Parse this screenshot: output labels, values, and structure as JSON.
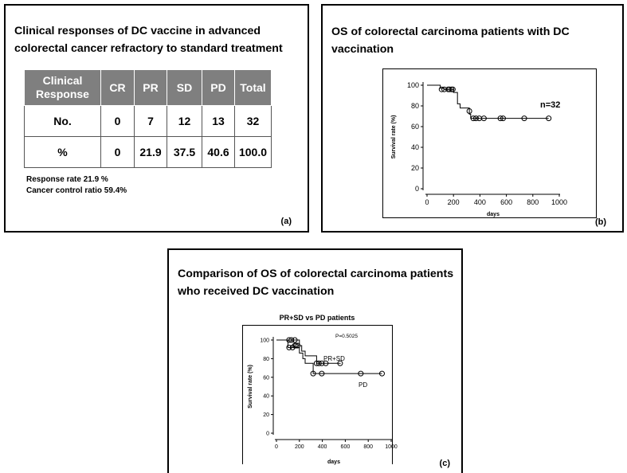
{
  "panel_a": {
    "title": "Clinical responses of DC vaccine in advanced colorectal cancer refractory to standard treatment",
    "label": "(a)",
    "table": {
      "headers": [
        "Clinical Response",
        "CR",
        "PR",
        "SD",
        "PD",
        "Total"
      ],
      "rows": [
        [
          "No.",
          "0",
          "7",
          "12",
          "13",
          "32"
        ],
        [
          "%",
          "0",
          "21.9",
          "37.5",
          "40.6",
          "100.0"
        ]
      ]
    },
    "notes": [
      "Response rate  21.9 %",
      "Cancer control ratio 59.4%"
    ]
  },
  "panel_b": {
    "title": "OS of colorectal carcinoma patients with DC vaccination",
    "label": "(b)"
  },
  "panel_c": {
    "title": "Comparison  of OS of colorectal carcinoma patients who received DC vaccination",
    "label": "(c)"
  },
  "chart_data": [
    {
      "type": "line",
      "subtype": "kaplan-meier",
      "xlabel": "days",
      "ylabel": "Survival rate (%)",
      "xlim": [
        0,
        1000
      ],
      "ylim": [
        0,
        100
      ],
      "xticks": [
        0,
        200,
        400,
        600,
        800,
        1000
      ],
      "yticks": [
        0,
        20,
        40,
        60,
        80,
        100
      ],
      "annotation": "n=32",
      "series": [
        {
          "steps": [
            [
              0,
              100
            ],
            [
              100,
              100
            ],
            [
              100,
              97
            ],
            [
              130,
              97
            ],
            [
              130,
              96
            ],
            [
              200,
              96
            ],
            [
              200,
              93
            ],
            [
              230,
              93
            ],
            [
              230,
              82
            ],
            [
              250,
              82
            ],
            [
              250,
              78
            ],
            [
              320,
              78
            ],
            [
              320,
              72
            ],
            [
              330,
              72
            ],
            [
              330,
              68
            ],
            [
              920,
              68
            ]
          ],
          "censored": [
            [
              110,
              96
            ],
            [
              130,
              96
            ],
            [
              160,
              96
            ],
            [
              170,
              96
            ],
            [
              185,
              96
            ],
            [
              195,
              96
            ],
            [
              320,
              75
            ],
            [
              350,
              68
            ],
            [
              370,
              68
            ],
            [
              395,
              68
            ],
            [
              430,
              68
            ],
            [
              555,
              68
            ],
            [
              575,
              68
            ],
            [
              735,
              68
            ],
            [
              920,
              68
            ]
          ]
        }
      ]
    },
    {
      "type": "line",
      "subtype": "kaplan-meier",
      "title": "PR+SD vs PD patients",
      "xlabel": "days",
      "ylabel": "Survival rate (%)",
      "xlim": [
        0,
        1000
      ],
      "ylim": [
        0,
        100
      ],
      "xticks": [
        0,
        200,
        400,
        600,
        800,
        1000
      ],
      "yticks": [
        0,
        20,
        40,
        60,
        80,
        100
      ],
      "annotation": "P=0.5025",
      "series": [
        {
          "name": "PR+SD",
          "steps": [
            [
              0,
              100
            ],
            [
              200,
              100
            ],
            [
              200,
              94
            ],
            [
              220,
              94
            ],
            [
              220,
              88
            ],
            [
              250,
              88
            ],
            [
              250,
              83
            ],
            [
              350,
              83
            ],
            [
              350,
              75
            ],
            [
              560,
              75
            ]
          ],
          "censored": [
            [
              110,
              100
            ],
            [
              130,
              100
            ],
            [
              160,
              94
            ],
            [
              170,
              94
            ],
            [
              185,
              94
            ],
            [
              350,
              75
            ],
            [
              370,
              75
            ],
            [
              395,
              75
            ],
            [
              430,
              75
            ],
            [
              555,
              75
            ]
          ]
        },
        {
          "name": "PD",
          "steps": [
            [
              0,
              100
            ],
            [
              100,
              100
            ],
            [
              100,
              92
            ],
            [
              200,
              92
            ],
            [
              200,
              86
            ],
            [
              230,
              86
            ],
            [
              230,
              80
            ],
            [
              250,
              80
            ],
            [
              250,
              75
            ],
            [
              320,
              75
            ],
            [
              320,
              64
            ],
            [
              920,
              64
            ]
          ],
          "censored": [
            [
              110,
              92
            ],
            [
              140,
              92
            ],
            [
              160,
              100
            ],
            [
              320,
              64
            ],
            [
              395,
              64
            ],
            [
              735,
              64
            ],
            [
              920,
              64
            ]
          ]
        }
      ]
    }
  ]
}
